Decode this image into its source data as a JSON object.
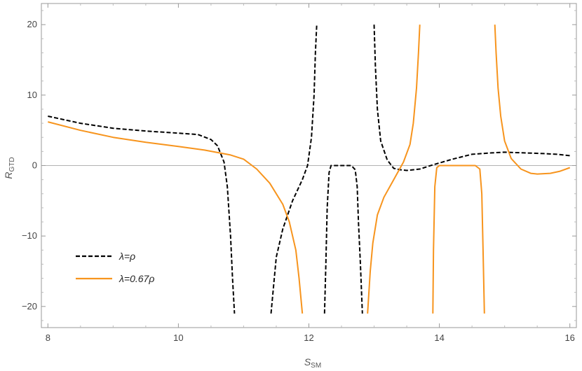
{
  "chart_data": {
    "type": "line",
    "xlabel": "S",
    "xlabel_sub": "SM",
    "ylabel": "R",
    "ylabel_sub": "GTD",
    "xlim": [
      7.9,
      16.1
    ],
    "ylim": [
      -23,
      23
    ],
    "x_ticks": [
      8,
      10,
      12,
      14,
      16
    ],
    "y_ticks": [
      -20,
      -10,
      0,
      10,
      20
    ],
    "x_tick_labels": [
      "8",
      "10",
      "12",
      "14",
      "16"
    ],
    "y_tick_labels": [
      "−20",
      "−10",
      "0",
      "10",
      "20"
    ],
    "grid": false,
    "zero_line": true,
    "legend_position": "bottom-left",
    "series": [
      {
        "name": "λ=ρ",
        "color": "#000000",
        "dash": "dashed",
        "segments": [
          [
            [
              8.0,
              7.0
            ],
            [
              8.5,
              6.0
            ],
            [
              9.0,
              5.3
            ],
            [
              9.5,
              4.9
            ],
            [
              10.0,
              4.6
            ],
            [
              10.3,
              4.4
            ],
            [
              10.5,
              3.7
            ],
            [
              10.6,
              2.8
            ],
            [
              10.7,
              0.5
            ],
            [
              10.75,
              -3
            ],
            [
              10.8,
              -10
            ],
            [
              10.83,
              -16
            ],
            [
              10.86,
              -21
            ]
          ],
          [
            [
              11.42,
              -21
            ],
            [
              11.5,
              -13
            ],
            [
              11.6,
              -9
            ],
            [
              11.75,
              -5
            ],
            [
              11.9,
              -2
            ],
            [
              11.98,
              0
            ],
            [
              12.04,
              4
            ],
            [
              12.08,
              10
            ],
            [
              12.1,
              16
            ],
            [
              12.12,
              20
            ]
          ],
          [
            [
              12.24,
              -21
            ],
            [
              12.26,
              -14
            ],
            [
              12.28,
              -6
            ],
            [
              12.31,
              -1
            ],
            [
              12.34,
              0
            ],
            [
              12.5,
              0
            ],
            [
              12.65,
              0
            ],
            [
              12.71,
              -0.6
            ],
            [
              12.74,
              -3
            ],
            [
              12.76,
              -8
            ],
            [
              12.79,
              -14
            ],
            [
              12.82,
              -21
            ]
          ],
          [
            [
              13.0,
              20
            ],
            [
              13.02,
              14
            ],
            [
              13.05,
              8
            ],
            [
              13.1,
              3.5
            ],
            [
              13.2,
              0.8
            ],
            [
              13.3,
              -0.4
            ],
            [
              13.4,
              -0.6
            ],
            [
              13.5,
              -0.7
            ],
            [
              13.7,
              -0.5
            ],
            [
              13.9,
              0.1
            ],
            [
              14.2,
              0.9
            ],
            [
              14.5,
              1.6
            ],
            [
              14.8,
              1.8
            ],
            [
              15.0,
              1.9
            ],
            [
              15.3,
              1.8
            ],
            [
              15.6,
              1.7
            ],
            [
              15.8,
              1.6
            ],
            [
              16.0,
              1.4
            ]
          ]
        ]
      },
      {
        "name": "λ=0.67ρ",
        "color": "#f7941d",
        "dash": "solid",
        "segments": [
          [
            [
              8.0,
              6.2
            ],
            [
              8.5,
              5.0
            ],
            [
              9.0,
              4.0
            ],
            [
              9.5,
              3.3
            ],
            [
              10.0,
              2.7
            ],
            [
              10.4,
              2.2
            ],
            [
              10.8,
              1.5
            ],
            [
              11.0,
              0.9
            ],
            [
              11.2,
              -0.5
            ],
            [
              11.4,
              -2.5
            ],
            [
              11.6,
              -5.5
            ],
            [
              11.7,
              -8
            ],
            [
              11.8,
              -12
            ],
            [
              11.85,
              -16
            ],
            [
              11.9,
              -21
            ]
          ],
          [
            [
              12.9,
              -21
            ],
            [
              12.94,
              -15
            ],
            [
              12.98,
              -11
            ],
            [
              13.05,
              -7
            ],
            [
              13.15,
              -4.5
            ],
            [
              13.3,
              -2
            ],
            [
              13.45,
              0.5
            ],
            [
              13.55,
              3
            ],
            [
              13.6,
              6
            ],
            [
              13.65,
              11
            ],
            [
              13.68,
              16
            ],
            [
              13.7,
              20
            ]
          ],
          [
            [
              13.9,
              -21
            ],
            [
              13.91,
              -12
            ],
            [
              13.93,
              -3
            ],
            [
              13.96,
              -0.3
            ],
            [
              14.0,
              0
            ],
            [
              14.3,
              0
            ],
            [
              14.55,
              0
            ],
            [
              14.62,
              -0.5
            ],
            [
              14.65,
              -4
            ],
            [
              14.67,
              -12
            ],
            [
              14.69,
              -21
            ]
          ],
          [
            [
              14.85,
              20
            ],
            [
              14.87,
              16
            ],
            [
              14.9,
              11
            ],
            [
              14.94,
              7
            ],
            [
              15.0,
              3.5
            ],
            [
              15.1,
              1
            ],
            [
              15.25,
              -0.5
            ],
            [
              15.4,
              -1.1
            ],
            [
              15.5,
              -1.2
            ],
            [
              15.7,
              -1.1
            ],
            [
              15.85,
              -0.8
            ],
            [
              16.0,
              -0.3
            ]
          ]
        ]
      }
    ]
  }
}
